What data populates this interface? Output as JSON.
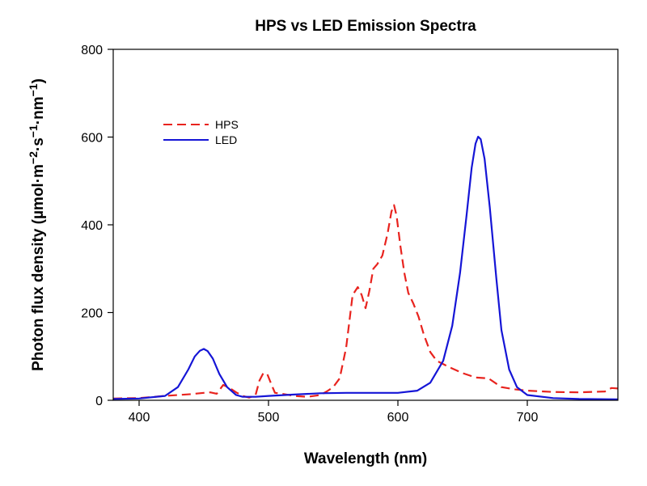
{
  "chart_data": {
    "type": "line",
    "title": "HPS vs LED Emission Spectra",
    "xlabel": "Wavelength (nm)",
    "ylabel": {
      "base": "Photon flux density (µmol·m",
      "sup1": "−2",
      "mid1": "·s",
      "sup2": "−1",
      "mid2": "·nm",
      "sup3": "−1",
      "end": ")"
    },
    "xlim": [
      380,
      770
    ],
    "ylim": [
      0,
      800
    ],
    "xticks": [
      400,
      500,
      600,
      700
    ],
    "yticks": [
      0,
      200,
      400,
      600,
      800
    ],
    "grid": false,
    "legend_position": "upper-left",
    "series": [
      {
        "name": "HPS",
        "color": "#e8231e",
        "style": "dashed",
        "points": [
          [
            380,
            4
          ],
          [
            400,
            5
          ],
          [
            420,
            10
          ],
          [
            440,
            14
          ],
          [
            450,
            17
          ],
          [
            455,
            18
          ],
          [
            460,
            15
          ],
          [
            465,
            35
          ],
          [
            470,
            28
          ],
          [
            475,
            18
          ],
          [
            480,
            10
          ],
          [
            485,
            6
          ],
          [
            490,
            12
          ],
          [
            493,
            45
          ],
          [
            496,
            62
          ],
          [
            499,
            60
          ],
          [
            502,
            38
          ],
          [
            505,
            17
          ],
          [
            510,
            15
          ],
          [
            520,
            10
          ],
          [
            530,
            8
          ],
          [
            540,
            12
          ],
          [
            545,
            20
          ],
          [
            550,
            30
          ],
          [
            555,
            50
          ],
          [
            560,
            120
          ],
          [
            565,
            240
          ],
          [
            569,
            258
          ],
          [
            572,
            240
          ],
          [
            575,
            210
          ],
          [
            578,
            250
          ],
          [
            581,
            300
          ],
          [
            584,
            310
          ],
          [
            588,
            330
          ],
          [
            592,
            380
          ],
          [
            595,
            430
          ],
          [
            597,
            445
          ],
          [
            599,
            420
          ],
          [
            602,
            350
          ],
          [
            605,
            290
          ],
          [
            608,
            245
          ],
          [
            612,
            220
          ],
          [
            616,
            190
          ],
          [
            620,
            150
          ],
          [
            625,
            110
          ],
          [
            630,
            90
          ],
          [
            640,
            75
          ],
          [
            650,
            62
          ],
          [
            660,
            52
          ],
          [
            670,
            50
          ],
          [
            680,
            30
          ],
          [
            690,
            25
          ],
          [
            700,
            22
          ],
          [
            720,
            19
          ],
          [
            740,
            18
          ],
          [
            760,
            20
          ],
          [
            765,
            28
          ],
          [
            770,
            27
          ]
        ]
      },
      {
        "name": "LED",
        "color": "#1515d6",
        "style": "solid",
        "points": [
          [
            380,
            3
          ],
          [
            400,
            4
          ],
          [
            420,
            10
          ],
          [
            430,
            30
          ],
          [
            438,
            70
          ],
          [
            443,
            100
          ],
          [
            447,
            113
          ],
          [
            450,
            117
          ],
          [
            453,
            112
          ],
          [
            457,
            95
          ],
          [
            462,
            60
          ],
          [
            468,
            30
          ],
          [
            475,
            12
          ],
          [
            480,
            8
          ],
          [
            490,
            8
          ],
          [
            500,
            10
          ],
          [
            520,
            13
          ],
          [
            540,
            16
          ],
          [
            560,
            17
          ],
          [
            580,
            17
          ],
          [
            600,
            17
          ],
          [
            615,
            22
          ],
          [
            625,
            40
          ],
          [
            635,
            90
          ],
          [
            642,
            170
          ],
          [
            648,
            290
          ],
          [
            653,
            420
          ],
          [
            657,
            530
          ],
          [
            660,
            585
          ],
          [
            662,
            601
          ],
          [
            664,
            595
          ],
          [
            667,
            550
          ],
          [
            671,
            440
          ],
          [
            676,
            280
          ],
          [
            680,
            160
          ],
          [
            686,
            70
          ],
          [
            692,
            30
          ],
          [
            700,
            12
          ],
          [
            720,
            5
          ],
          [
            740,
            3
          ],
          [
            770,
            2
          ]
        ]
      }
    ]
  }
}
